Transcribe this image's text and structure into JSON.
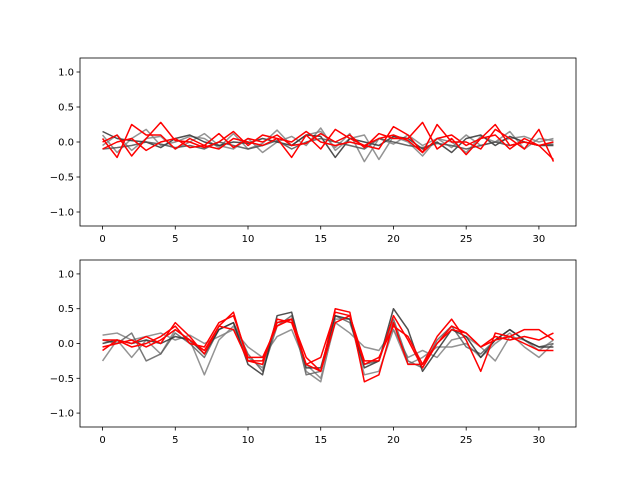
{
  "chart_data": [
    {
      "type": "line",
      "xlim": [
        -1.55,
        32.55
      ],
      "ylim": [
        -1.2,
        1.2
      ],
      "xticks": [
        0,
        5,
        10,
        15,
        20,
        25,
        30
      ],
      "yticks": [
        -1.0,
        -0.5,
        0.0,
        0.5,
        1.0
      ],
      "xtick_labels": [
        "0",
        "5",
        "10",
        "15",
        "20",
        "25",
        "30"
      ],
      "ytick_labels": [
        "−1.0",
        "−0.5",
        "0.0",
        "0.5",
        "1.0"
      ],
      "grid": false,
      "x": [
        0,
        1,
        2,
        3,
        4,
        5,
        6,
        7,
        8,
        9,
        10,
        11,
        12,
        13,
        14,
        15,
        16,
        17,
        18,
        19,
        20,
        21,
        22,
        23,
        24,
        25,
        26,
        27,
        28,
        29,
        30,
        31
      ],
      "series": [
        {
          "color": "#808080",
          "values": [
            0.1,
            -0.15,
            0.05,
            0.18,
            -0.05,
            0.0,
            0.08,
            0.05,
            -0.08,
            0.12,
            -0.1,
            -0.02,
            0.17,
            -0.05,
            0.1,
            0.15,
            -0.08,
            0.12,
            -0.28,
            0.05,
            -0.03,
            0.1,
            -0.05,
            0.05,
            0.0,
            -0.15,
            0.08,
            0.0,
            0.05,
            0.08,
            0.0,
            0.05
          ]
        },
        {
          "color": "#808080",
          "values": [
            -0.05,
            0.1,
            -0.12,
            0.05,
            0.08,
            -0.1,
            0.0,
            0.12,
            -0.05,
            -0.1,
            0.05,
            -0.15,
            0.0,
            0.08,
            -0.05,
            0.2,
            -0.12,
            0.05,
            0.1,
            -0.25,
            0.08,
            0.0,
            -0.2,
            0.05,
            -0.08,
            0.1,
            -0.05,
            0.0,
            0.15,
            -0.1,
            0.05,
            0.02
          ]
        },
        {
          "color": "#303030",
          "values": [
            0.15,
            0.05,
            0.02,
            0.0,
            -0.08,
            0.05,
            0.1,
            0.0,
            -0.05,
            0.0,
            -0.02,
            0.05,
            0.0,
            -0.05,
            0.1,
            0.08,
            -0.22,
            0.05,
            0.0,
            -0.05,
            0.08,
            0.05,
            -0.1,
            0.0,
            -0.15,
            0.05,
            0.1,
            -0.05,
            0.08,
            0.0,
            -0.05,
            -0.05
          ]
        },
        {
          "color": "#505050",
          "values": [
            -0.1,
            -0.08,
            -0.05,
            0.0,
            -0.03,
            -0.08,
            -0.05,
            -0.1,
            0.0,
            -0.05,
            -0.1,
            -0.05,
            0.02,
            -0.1,
            0.0,
            0.05,
            0.0,
            -0.05,
            -0.1,
            0.05,
            0.0,
            -0.05,
            -0.08,
            -0.02,
            -0.05,
            -0.1,
            -0.05,
            0.0,
            -0.05,
            0.0,
            -0.05,
            -0.03
          ]
        },
        {
          "color": "#ff0000",
          "values": [
            0.05,
            -0.22,
            0.25,
            0.1,
            0.1,
            -0.1,
            0.05,
            -0.05,
            0.12,
            -0.08,
            0.05,
            0.0,
            0.1,
            -0.05,
            -0.02,
            0.12,
            0.0,
            0.1,
            -0.08,
            0.12,
            0.05,
            0.05,
            0.28,
            -0.1,
            0.05,
            -0.18,
            0.05,
            0.25,
            -0.05,
            0.0,
            -0.05,
            -0.25
          ]
        },
        {
          "color": "#ff0000",
          "values": [
            0.0,
            0.1,
            -0.2,
            0.05,
            0.28,
            0.02,
            0.0,
            -0.08,
            0.0,
            0.15,
            -0.05,
            0.1,
            0.05,
            -0.22,
            0.1,
            -0.1,
            0.18,
            0.05,
            -0.05,
            -0.1,
            0.22,
            0.1,
            -0.15,
            0.25,
            0.0,
            0.0,
            -0.1,
            0.18,
            0.05,
            -0.1,
            0.18,
            -0.28
          ]
        },
        {
          "color": "#ff0000",
          "values": [
            -0.1,
            0.0,
            0.05,
            -0.12,
            0.0,
            0.05,
            -0.08,
            -0.05,
            -0.1,
            0.05,
            0.0,
            -0.05,
            0.05,
            0.0,
            0.15,
            0.0,
            -0.05,
            0.0,
            -0.05,
            0.05,
            0.1,
            0.02,
            -0.15,
            0.05,
            0.1,
            -0.05,
            0.05,
            0.1,
            -0.1,
            0.05,
            -0.05,
            0.0
          ]
        }
      ]
    },
    {
      "type": "line",
      "xlim": [
        -1.55,
        32.55
      ],
      "ylim": [
        -1.2,
        1.2
      ],
      "xticks": [
        0,
        5,
        10,
        15,
        20,
        25,
        30
      ],
      "yticks": [
        -1.0,
        -0.5,
        0.0,
        0.5,
        1.0
      ],
      "xtick_labels": [
        "0",
        "5",
        "10",
        "15",
        "20",
        "25",
        "30"
      ],
      "ytick_labels": [
        "−1.0",
        "−0.5",
        "0.0",
        "0.5",
        "1.0"
      ],
      "grid": false,
      "x": [
        0,
        1,
        2,
        3,
        4,
        5,
        6,
        7,
        8,
        9,
        10,
        11,
        12,
        13,
        14,
        15,
        16,
        17,
        18,
        19,
        20,
        21,
        22,
        23,
        24,
        25,
        26,
        27,
        28,
        29,
        30,
        31
      ],
      "series": [
        {
          "color": "#808080",
          "values": [
            0.12,
            0.15,
            0.05,
            0.1,
            0.15,
            0.05,
            0.12,
            0.0,
            0.1,
            0.2,
            -0.05,
            -0.2,
            0.1,
            0.2,
            -0.3,
            -0.5,
            0.3,
            0.15,
            -0.05,
            -0.1,
            0.2,
            -0.2,
            -0.1,
            -0.2,
            0.05,
            0.1,
            -0.05,
            -0.25,
            0.1,
            0.05,
            -0.1,
            0.05
          ]
        },
        {
          "color": "#808080",
          "values": [
            -0.25,
            0.05,
            -0.2,
            0.05,
            -0.15,
            0.2,
            0.05,
            -0.45,
            0.05,
            0.25,
            -0.2,
            -0.35,
            0.3,
            0.35,
            -0.4,
            -0.55,
            0.35,
            0.35,
            -0.45,
            -0.4,
            0.2,
            -0.3,
            -0.2,
            -0.05,
            -0.05,
            0.0,
            -0.2,
            0.0,
            0.15,
            -0.05,
            -0.2,
            0.0
          ]
        },
        {
          "color": "#606060",
          "values": [
            0.05,
            0.0,
            0.15,
            -0.25,
            -0.15,
            0.15,
            0.0,
            -0.2,
            0.2,
            0.3,
            -0.15,
            -0.4,
            0.25,
            0.4,
            -0.45,
            -0.4,
            0.4,
            0.3,
            -0.3,
            -0.25,
            0.35,
            -0.25,
            -0.35,
            0.05,
            0.25,
            -0.05,
            -0.15,
            0.05,
            0.2,
            0.05,
            -0.05,
            0.0
          ]
        },
        {
          "color": "#303030",
          "values": [
            0.0,
            0.05,
            0.0,
            0.05,
            0.0,
            0.1,
            0.05,
            -0.15,
            0.2,
            0.3,
            -0.3,
            -0.45,
            0.4,
            0.45,
            -0.35,
            -0.35,
            0.4,
            0.35,
            -0.35,
            -0.25,
            0.5,
            0.2,
            -0.4,
            -0.1,
            0.2,
            0.1,
            -0.2,
            0.05,
            0.2,
            0.05,
            -0.05,
            -0.05
          ]
        },
        {
          "color": "#ff0000",
          "values": [
            0.05,
            0.05,
            0.0,
            0.1,
            0.0,
            0.3,
            0.1,
            -0.15,
            0.25,
            0.45,
            -0.25,
            -0.25,
            0.3,
            0.35,
            -0.2,
            -0.4,
            0.5,
            0.45,
            -0.55,
            -0.45,
            0.3,
            -0.3,
            -0.3,
            0.1,
            0.35,
            0.05,
            -0.4,
            0.15,
            0.1,
            0.2,
            0.2,
            0.05
          ]
        },
        {
          "color": "#ff0000",
          "values": [
            -0.1,
            0.05,
            -0.05,
            0.0,
            0.1,
            0.25,
            0.0,
            -0.05,
            0.3,
            0.4,
            -0.2,
            -0.2,
            0.25,
            0.35,
            -0.3,
            -0.2,
            0.45,
            0.4,
            -0.25,
            -0.25,
            0.4,
            0.05,
            -0.35,
            0.0,
            0.2,
            0.15,
            -0.05,
            0.1,
            0.05,
            0.1,
            0.05,
            0.15
          ]
        },
        {
          "color": "#ff0000",
          "values": [
            -0.05,
            0.0,
            0.05,
            -0.05,
            0.05,
            0.2,
            0.05,
            -0.1,
            0.25,
            0.2,
            -0.25,
            -0.3,
            0.35,
            0.3,
            -0.3,
            -0.4,
            0.3,
            0.4,
            -0.3,
            -0.2,
            0.25,
            0.1,
            -0.3,
            0.0,
            0.25,
            0.15,
            -0.05,
            0.05,
            0.1,
            0.0,
            -0.1,
            -0.1
          ]
        }
      ]
    }
  ]
}
